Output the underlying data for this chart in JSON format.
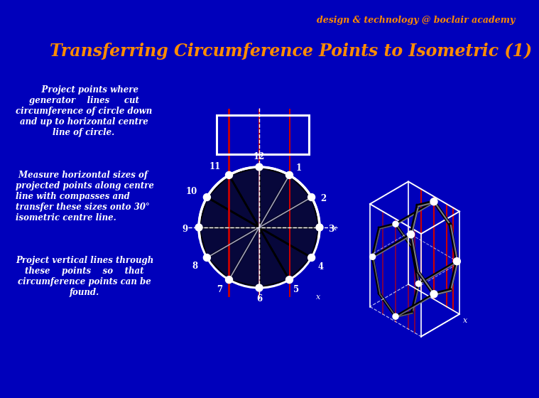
{
  "bg_color": "#0000BB",
  "header_text": "design & technology @ boclair academy",
  "header_color": "#FF8C00",
  "header_fontsize": 9,
  "title_text": "Transferring Circumference Points to Isometric (1)",
  "title_color": "#FF8C00",
  "title_fontsize": 17,
  "body_text_color": "#FFFFFF",
  "paragraph1": "    Project points where\ngenerator    lines     cut\ncircumference of circle down\nand up to horizontal centre\nline of circle.",
  "paragraph2": " Measure horizontal sizes of\nprojected points along centre\nline with compasses and\ntransfer these sizes onto 30°\nisometric centre line.",
  "paragraph3": "Project vertical lines through\nthese    points    so    that\ncircumference points can be\nfound.",
  "white_color": "#FFFFFF",
  "red_color": "#CC0000",
  "black_color": "#000000",
  "gray_color": "#888899"
}
